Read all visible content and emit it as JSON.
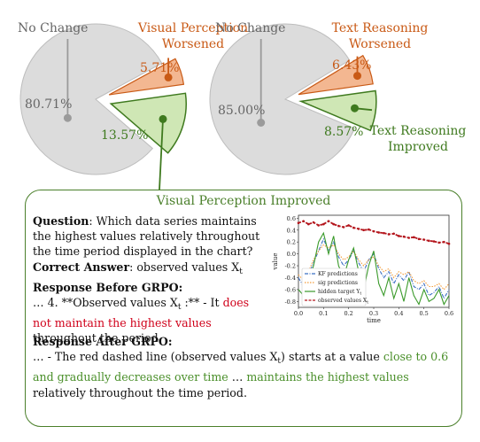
{
  "chart_data": [
    {
      "type": "pie",
      "slices": [
        {
          "label": "No Change",
          "value": 80.71,
          "value_label": "80.71%",
          "color": "#dcdcdc"
        },
        {
          "label": "Visual Perception Worsened",
          "value": 5.71,
          "value_label": "5.71%",
          "color": "#f3b791"
        },
        {
          "label": "",
          "value": 13.57,
          "value_label": "13.57%",
          "color": "#cfe7b5"
        }
      ],
      "callouts": {
        "no_change": "No Change",
        "worsened": [
          "Visual Perception",
          "Worsened"
        ]
      }
    },
    {
      "type": "pie",
      "slices": [
        {
          "label": "No Change",
          "value": 85.0,
          "value_label": "85.00%",
          "color": "#dcdcdc"
        },
        {
          "label": "Text Reasoning Worsened",
          "value": 6.43,
          "value_label": "6.43%",
          "color": "#f3b791"
        },
        {
          "label": "Text Reasoning Improved",
          "value": 8.57,
          "value_label": "8.57%",
          "color": "#cfe7b5"
        }
      ],
      "callouts": {
        "no_change": "No Change",
        "worsened": [
          "Text Reasoning",
          "Worsened"
        ],
        "improved": [
          "Text Reasoning",
          "Improved"
        ]
      }
    },
    {
      "type": "line",
      "xlabel": "time",
      "ylabel": "value",
      "xlim": [
        0.0,
        0.6
      ],
      "ylim": [
        -0.9,
        0.65
      ],
      "xticks": [
        "0.0",
        "0.1",
        "0.2",
        "0.3",
        "0.4",
        "0.5",
        "0.6"
      ],
      "yticks": [
        "0.6",
        "0.4",
        "0.2",
        "0.0",
        "-0.2",
        "-0.4",
        "-0.6",
        "-0.8"
      ],
      "legend_position": "bottom-left",
      "series": [
        {
          "name": "KF predictions",
          "color": "#3b6fc4",
          "style": "dash-dot",
          "x": [
            0.0,
            0.02,
            0.04,
            0.06,
            0.08,
            0.1,
            0.12,
            0.14,
            0.16,
            0.18,
            0.2,
            0.22,
            0.24,
            0.26,
            0.28,
            0.3,
            0.32,
            0.34,
            0.36,
            0.38,
            0.4,
            0.42,
            0.44,
            0.46,
            0.48,
            0.5,
            0.52,
            0.54,
            0.56,
            0.58,
            0.6
          ],
          "y": [
            -0.4,
            -0.55,
            -0.35,
            -0.15,
            0.05,
            0.25,
            0.05,
            0.2,
            -0.05,
            -0.2,
            -0.1,
            0.05,
            -0.15,
            -0.3,
            -0.1,
            0.0,
            -0.25,
            -0.4,
            -0.3,
            -0.5,
            -0.35,
            -0.45,
            -0.3,
            -0.55,
            -0.6,
            -0.5,
            -0.7,
            -0.65,
            -0.55,
            -0.75,
            -0.6
          ]
        },
        {
          "name": "sig predictions",
          "color": "#f39c3a",
          "style": "dotted",
          "x": [
            0.0,
            0.02,
            0.04,
            0.06,
            0.08,
            0.1,
            0.12,
            0.14,
            0.16,
            0.18,
            0.2,
            0.22,
            0.24,
            0.26,
            0.28,
            0.3,
            0.32,
            0.34,
            0.36,
            0.38,
            0.4,
            0.42,
            0.44,
            0.46,
            0.48,
            0.5,
            0.52,
            0.54,
            0.56,
            0.58,
            0.6
          ],
          "y": [
            -0.35,
            -0.45,
            -0.3,
            -0.1,
            0.05,
            0.15,
            0.1,
            0.15,
            0.0,
            -0.1,
            -0.05,
            0.05,
            -0.1,
            -0.2,
            -0.1,
            -0.05,
            -0.2,
            -0.3,
            -0.25,
            -0.4,
            -0.3,
            -0.35,
            -0.3,
            -0.45,
            -0.5,
            -0.45,
            -0.55,
            -0.55,
            -0.5,
            -0.6,
            -0.5
          ]
        },
        {
          "name": "hidden target",
          "color": "#3a9a2a",
          "style": "solid",
          "x": [
            0.0,
            0.02,
            0.04,
            0.06,
            0.08,
            0.1,
            0.12,
            0.14,
            0.16,
            0.18,
            0.2,
            0.22,
            0.24,
            0.26,
            0.28,
            0.3,
            0.32,
            0.34,
            0.36,
            0.38,
            0.4,
            0.42,
            0.44,
            0.46,
            0.48,
            0.5,
            0.52,
            0.54,
            0.56,
            0.58,
            0.6
          ],
          "y": [
            -0.6,
            -0.7,
            -0.5,
            -0.2,
            0.2,
            0.35,
            0.0,
            0.3,
            -0.2,
            -0.4,
            -0.1,
            0.1,
            -0.3,
            -0.6,
            -0.2,
            0.05,
            -0.5,
            -0.7,
            -0.4,
            -0.75,
            -0.5,
            -0.8,
            -0.4,
            -0.7,
            -0.85,
            -0.6,
            -0.8,
            -0.75,
            -0.6,
            -0.85,
            -0.7
          ]
        },
        {
          "name": "observed values",
          "color": "#b3141b",
          "style": "dashed-dot-markers",
          "x": [
            0.0,
            0.02,
            0.04,
            0.06,
            0.08,
            0.1,
            0.12,
            0.14,
            0.16,
            0.18,
            0.2,
            0.22,
            0.24,
            0.26,
            0.28,
            0.3,
            0.32,
            0.34,
            0.36,
            0.38,
            0.4,
            0.42,
            0.44,
            0.46,
            0.48,
            0.5,
            0.52,
            0.54,
            0.56,
            0.58,
            0.6
          ],
          "y": [
            0.52,
            0.55,
            0.5,
            0.53,
            0.48,
            0.5,
            0.55,
            0.5,
            0.47,
            0.45,
            0.48,
            0.44,
            0.42,
            0.4,
            0.41,
            0.38,
            0.36,
            0.35,
            0.33,
            0.34,
            0.3,
            0.29,
            0.27,
            0.28,
            0.25,
            0.24,
            0.22,
            0.21,
            0.19,
            0.2,
            0.17
          ]
        }
      ]
    }
  ],
  "panel": {
    "title": "Visual Perception Improved",
    "question_label": "Question",
    "question_text": ": Which data series maintains the highest values relatively throughout the time period displayed in the chart?",
    "correct_label": "Correct Answer",
    "correct_text": ": observed values X",
    "correct_sub": "t",
    "before_label": "Response Before GRPO",
    "before_colon": ":",
    "before_pre": "… 4. **Observed values X",
    "before_sub": "t",
    "before_mid": " :** - It ",
    "before_red": "does not maintain the highest values",
    "before_post": " throughout the period.",
    "after_label": "Response After GRPO",
    "after_colon": ":",
    "after_pre": "… - The red dashed line (observed values X",
    "after_sub": "t",
    "after_mid": ") starts at a value ",
    "after_green1": "close to 0.6 and gradually decreases over time",
    "after_mid2": " …  ",
    "after_green2": "maintains the highest values",
    "after_post": " relatively throughout the time period."
  },
  "mini_chart": {
    "legend": [
      "KF predictions",
      "sig predictions",
      "hidden target Y",
      "observed values X"
    ],
    "legend_subs": [
      "",
      "",
      "t",
      "t"
    ]
  }
}
